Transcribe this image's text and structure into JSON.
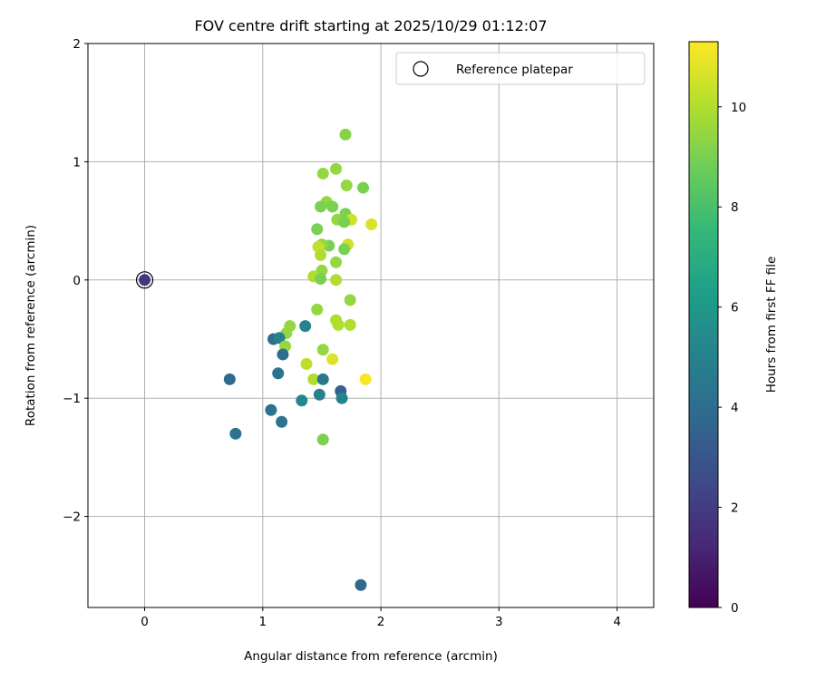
{
  "chart_data": {
    "type": "scatter",
    "title": "FOV centre drift starting at 2025/10/29 01:12:07",
    "xlabel": "Angular distance from reference (arcmin)",
    "ylabel": "Rotation from reference (arcmin)",
    "xlim": [
      -0.48,
      4.31
    ],
    "ylim": [
      -2.77,
      2.0
    ],
    "xticks": [
      0,
      1,
      2,
      3,
      4
    ],
    "yticks": [
      -2,
      -1,
      0,
      1,
      2
    ],
    "grid": true,
    "legend": {
      "placement": "top-right",
      "entries": [
        "Reference platepar"
      ]
    },
    "reference_point": {
      "x": 0,
      "y": 0
    },
    "colorbar": {
      "label": "Hours from first FF file",
      "range": [
        0,
        11.3
      ],
      "ticks": [
        0,
        2,
        4,
        6,
        8,
        10
      ],
      "colormap": "viridis"
    },
    "points": [
      {
        "x": 0,
        "y": 0,
        "h": 1.8
      },
      {
        "x": 1.7,
        "y": 1.23,
        "h": 9.2
      },
      {
        "x": 1.51,
        "y": 0.9,
        "h": 9.5
      },
      {
        "x": 1.62,
        "y": 0.94,
        "h": 9.5
      },
      {
        "x": 1.85,
        "y": 0.78,
        "h": 9.0
      },
      {
        "x": 1.71,
        "y": 0.8,
        "h": 9.5
      },
      {
        "x": 1.54,
        "y": 0.66,
        "h": 9.5
      },
      {
        "x": 1.49,
        "y": 0.62,
        "h": 9.0
      },
      {
        "x": 1.59,
        "y": 0.62,
        "h": 9.0
      },
      {
        "x": 1.7,
        "y": 0.56,
        "h": 9.0
      },
      {
        "x": 1.63,
        "y": 0.51,
        "h": 9.5
      },
      {
        "x": 1.75,
        "y": 0.51,
        "h": 10.5
      },
      {
        "x": 1.69,
        "y": 0.49,
        "h": 9.0
      },
      {
        "x": 1.92,
        "y": 0.47,
        "h": 10.7
      },
      {
        "x": 1.46,
        "y": 0.43,
        "h": 9.0
      },
      {
        "x": 1.56,
        "y": 0.29,
        "h": 9.0
      },
      {
        "x": 1.5,
        "y": 0.3,
        "h": 9.5
      },
      {
        "x": 1.72,
        "y": 0.3,
        "h": 10.5
      },
      {
        "x": 1.69,
        "y": 0.26,
        "h": 9.0
      },
      {
        "x": 1.47,
        "y": 0.28,
        "h": 10.3
      },
      {
        "x": 1.49,
        "y": 0.21,
        "h": 10.0
      },
      {
        "x": 1.62,
        "y": 0.15,
        "h": 9.5
      },
      {
        "x": 1.5,
        "y": 0.08,
        "h": 9.5
      },
      {
        "x": 1.43,
        "y": 0.03,
        "h": 10.0
      },
      {
        "x": 1.49,
        "y": 0.01,
        "h": 9.0
      },
      {
        "x": 1.62,
        "y": 0.0,
        "h": 10.0
      },
      {
        "x": 1.74,
        "y": -0.17,
        "h": 9.5
      },
      {
        "x": 1.46,
        "y": -0.25,
        "h": 9.5
      },
      {
        "x": 1.62,
        "y": -0.34,
        "h": 10.0
      },
      {
        "x": 1.64,
        "y": -0.38,
        "h": 10.0
      },
      {
        "x": 1.74,
        "y": -0.38,
        "h": 10.0
      },
      {
        "x": 1.23,
        "y": -0.39,
        "h": 9.5
      },
      {
        "x": 1.36,
        "y": -0.39,
        "h": 5.0
      },
      {
        "x": 1.2,
        "y": -0.45,
        "h": 9.5
      },
      {
        "x": 1.09,
        "y": -0.5,
        "h": 4.0
      },
      {
        "x": 1.14,
        "y": -0.49,
        "h": 5.0
      },
      {
        "x": 1.19,
        "y": -0.56,
        "h": 9.5
      },
      {
        "x": 1.17,
        "y": -0.63,
        "h": 4.0
      },
      {
        "x": 1.51,
        "y": -0.59,
        "h": 9.5
      },
      {
        "x": 1.37,
        "y": -0.71,
        "h": 10.2
      },
      {
        "x": 1.59,
        "y": -0.67,
        "h": 10.7
      },
      {
        "x": 1.13,
        "y": -0.79,
        "h": 4.3
      },
      {
        "x": 0.72,
        "y": -0.84,
        "h": 3.8
      },
      {
        "x": 1.43,
        "y": -0.84,
        "h": 10.0
      },
      {
        "x": 1.51,
        "y": -0.84,
        "h": 4.5
      },
      {
        "x": 1.87,
        "y": -0.84,
        "h": 11.2
      },
      {
        "x": 1.66,
        "y": -0.94,
        "h": 3.5
      },
      {
        "x": 1.48,
        "y": -0.97,
        "h": 5.0
      },
      {
        "x": 1.33,
        "y": -1.02,
        "h": 5.2
      },
      {
        "x": 1.67,
        "y": -1.0,
        "h": 5.0
      },
      {
        "x": 1.07,
        "y": -1.1,
        "h": 4.3
      },
      {
        "x": 1.16,
        "y": -1.2,
        "h": 4.3
      },
      {
        "x": 0.77,
        "y": -1.3,
        "h": 4.3
      },
      {
        "x": 1.51,
        "y": -1.35,
        "h": 9.0
      },
      {
        "x": 1.83,
        "y": -2.58,
        "h": 3.8
      }
    ]
  }
}
